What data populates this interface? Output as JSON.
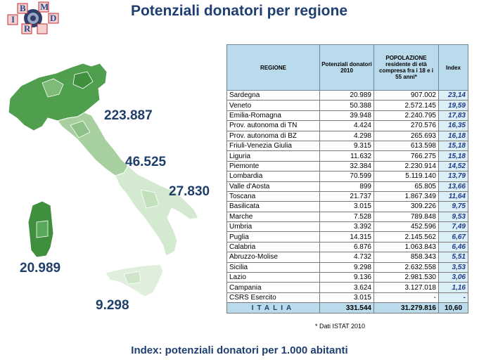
{
  "title": "Potenziali donatori per regione",
  "logo": {
    "letters": [
      "B",
      "M",
      "D",
      "I",
      "R"
    ],
    "colors": {
      "blue": "#2b4b8c",
      "red": "#c03030"
    }
  },
  "map_labels": {
    "north": "223.887",
    "center": "46.525",
    "south_east": "27.830",
    "sardinia": "20.989",
    "sicily": "9.298"
  },
  "table": {
    "headers": {
      "regione": "REGIONE",
      "potenziali": "Potenziali donatori 2010",
      "popolazione": "POPOLAZIONE residente di età compresa fra i 18 e i 55 anni*",
      "index": "Index"
    },
    "rows": [
      {
        "regione": "Sardegna",
        "donatori": "20.989",
        "popolazione": "907.002",
        "index": "23,14"
      },
      {
        "regione": "Veneto",
        "donatori": "50.388",
        "popolazione": "2.572.145",
        "index": "19,59"
      },
      {
        "regione": "Emilia-Romagna",
        "donatori": "39.948",
        "popolazione": "2.240.795",
        "index": "17,83"
      },
      {
        "regione": "Prov. autonoma di TN",
        "donatori": "4.424",
        "popolazione": "270.576",
        "index": "16,35"
      },
      {
        "regione": "Prov. autonoma di BZ",
        "donatori": "4.298",
        "popolazione": "265.693",
        "index": "16,18"
      },
      {
        "regione": "Friuli-Venezia Giulia",
        "donatori": "9.315",
        "popolazione": "613.598",
        "index": "15,18"
      },
      {
        "regione": "Liguria",
        "donatori": "11.632",
        "popolazione": "766.275",
        "index": "15,18"
      },
      {
        "regione": "Piemonte",
        "donatori": "32.384",
        "popolazione": "2.230.914",
        "index": "14,52"
      },
      {
        "regione": "Lombardia",
        "donatori": "70.599",
        "popolazione": "5.119.140",
        "index": "13,79"
      },
      {
        "regione": "Valle d'Aosta",
        "donatori": "899",
        "popolazione": "65.805",
        "index": "13,66"
      },
      {
        "regione": "Toscana",
        "donatori": "21.737",
        "popolazione": "1.867.349",
        "index": "11,64"
      },
      {
        "regione": "Basilicata",
        "donatori": "3.015",
        "popolazione": "309.226",
        "index": "9,75"
      },
      {
        "regione": "Marche",
        "donatori": "7.528",
        "popolazione": "789.848",
        "index": "9,53"
      },
      {
        "regione": "Umbria",
        "donatori": "3.392",
        "popolazione": "452.596",
        "index": "7,49"
      },
      {
        "regione": "Puglia",
        "donatori": "14.315",
        "popolazione": "2.145.562",
        "index": "6,67"
      },
      {
        "regione": "Calabria",
        "donatori": "6.876",
        "popolazione": "1.063.843",
        "index": "6,46"
      },
      {
        "regione": "Abruzzo-Molise",
        "donatori": "4.732",
        "popolazione": "858.343",
        "index": "5,51"
      },
      {
        "regione": "Sicilia",
        "donatori": "9.298",
        "popolazione": "2.632.558",
        "index": "3,53"
      },
      {
        "regione": "Lazio",
        "donatori": "9.136",
        "popolazione": "2.981.530",
        "index": "3,06"
      },
      {
        "regione": "Campania",
        "donatori": "3.624",
        "popolazione": "3.127.018",
        "index": "1,16"
      },
      {
        "regione": "CSRS Esercito",
        "donatori": "3.015",
        "popolazione": "-",
        "index": "-"
      }
    ],
    "total": {
      "regione": "ITALIA",
      "donatori": "331.544",
      "popolazione": "31.279.816",
      "index": "10,60"
    }
  },
  "footnote": "* Dati ISTAT  2010",
  "bottom_caption": "Index: potenziali donatori per 1.000 abitanti",
  "colors": {
    "title": "#1f3f73",
    "header_bg": "#b9dbeb",
    "index_bg": "#dceff7",
    "index_text": "#1f3a8a"
  }
}
